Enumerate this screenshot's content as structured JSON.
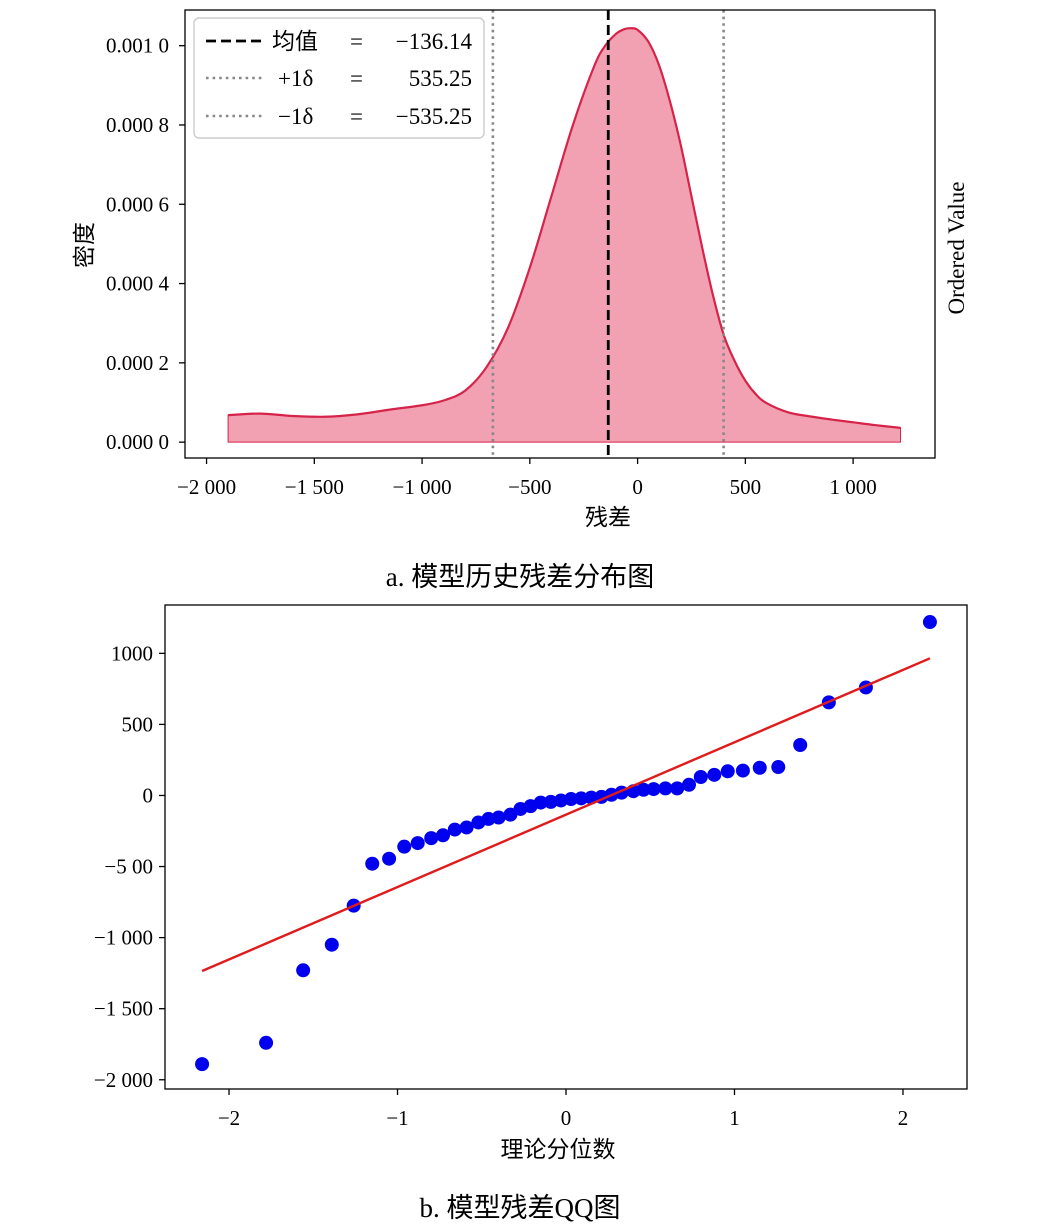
{
  "captions": {
    "a": "a. 模型历史残差分布图",
    "b": "b. 模型残差QQ图"
  },
  "colors": {
    "kde_fill": "#f1a1b2",
    "kde_line": "#d6234a",
    "mean_line": "#000000",
    "sigma_line": "#888888",
    "qq_points": "#0000ee",
    "qq_line": "#e01b1b"
  },
  "chart_data": [
    {
      "type": "area",
      "xlabel": "残差",
      "ylabel": "密度",
      "right_label": "Ordered Value",
      "xlim": [
        -2100,
        1380
      ],
      "ylim": [
        -4e-05,
        0.00109
      ],
      "x_ticks": [
        {
          "value": -2000,
          "label": "−2 000"
        },
        {
          "value": -1500,
          "label": "−1 500"
        },
        {
          "value": -1000,
          "label": "−1 000"
        },
        {
          "value": -500,
          "label": "−500"
        },
        {
          "value": 0,
          "label": "0"
        },
        {
          "value": 500,
          "label": "500"
        },
        {
          "value": 1000,
          "label": "1 000"
        }
      ],
      "y_ticks": [
        {
          "value": 0.0,
          "label": "0.000 0"
        },
        {
          "value": 0.0002,
          "label": "0.000 2"
        },
        {
          "value": 0.0004,
          "label": "0.000 4"
        },
        {
          "value": 0.0006,
          "label": "0.000 6"
        },
        {
          "value": 0.0008,
          "label": "0.000 8"
        },
        {
          "value": 0.001,
          "label": "0.001 0"
        }
      ],
      "curve": {
        "x": [
          -1900,
          -1750,
          -1600,
          -1450,
          -1300,
          -1150,
          -1000,
          -900,
          -800,
          -700,
          -600,
          -500,
          -400,
          -300,
          -200,
          -150,
          -100,
          -60,
          -30,
          0,
          50,
          100,
          150,
          200,
          250,
          300,
          350,
          400,
          450,
          500,
          550,
          600,
          700,
          800,
          900,
          1000,
          1100,
          1220
        ],
        "y": [
          6.8e-05,
          7.2e-05,
          6.6e-05,
          6.4e-05,
          7e-05,
          8.2e-05,
          9.3e-05,
          0.000105,
          0.00013,
          0.00019,
          0.00029,
          0.00044,
          0.00062,
          0.0008,
          0.00095,
          0.001,
          0.00103,
          0.001042,
          0.001044,
          0.00104,
          0.00101,
          0.00095,
          0.00086,
          0.00075,
          0.00062,
          0.00049,
          0.00037,
          0.00027,
          0.000205,
          0.000155,
          0.00012,
          9.8e-05,
          7.5e-05,
          6.5e-05,
          5.7e-05,
          5e-05,
          4.3e-05,
          3.6e-05
        ]
      },
      "mean": -136.14,
      "sigma": 535.25,
      "legend": {
        "placement": "top-left",
        "entries": [
          {
            "name": "均值",
            "eq": "=",
            "value": "−136.14",
            "style": "dashed"
          },
          {
            "name": "+1δ",
            "eq": "=",
            "value": "535.25",
            "style": "dotted"
          },
          {
            "name": "−1δ",
            "eq": "=",
            "value": "−535.25",
            "style": "dotted"
          }
        ]
      }
    },
    {
      "type": "scatter",
      "xlabel": "理论分位数",
      "ylabel": "",
      "xlim": [
        -2.38,
        2.38
      ],
      "ylim": [
        -2065,
        1340
      ],
      "x_ticks": [
        {
          "value": -2,
          "label": "−2"
        },
        {
          "value": -1,
          "label": "−1"
        },
        {
          "value": 0,
          "label": "0"
        },
        {
          "value": 1,
          "label": "1"
        },
        {
          "value": 2,
          "label": "2"
        }
      ],
      "y_ticks": [
        {
          "value": 1000,
          "label": "1000"
        },
        {
          "value": 500,
          "label": "500"
        },
        {
          "value": 0,
          "label": "0"
        },
        {
          "value": -500,
          "label": "−5 00"
        },
        {
          "value": -1000,
          "label": "−1 000"
        },
        {
          "value": -1500,
          "label": "−1 500"
        },
        {
          "value": -2000,
          "label": "−2 000"
        }
      ],
      "points": {
        "x": [
          -2.16,
          -1.78,
          -1.56,
          -1.39,
          -1.26,
          -1.15,
          -1.05,
          -0.96,
          -0.88,
          -0.8,
          -0.73,
          -0.66,
          -0.59,
          -0.52,
          -0.46,
          -0.4,
          -0.33,
          -0.27,
          -0.21,
          -0.15,
          -0.09,
          -0.03,
          0.03,
          0.09,
          0.15,
          0.21,
          0.27,
          0.33,
          0.4,
          0.46,
          0.52,
          0.59,
          0.66,
          0.73,
          0.8,
          0.88,
          0.96,
          1.05,
          1.15,
          1.26,
          1.39,
          1.56,
          1.78,
          2.16
        ],
        "y": [
          -1890,
          -1740,
          -1230,
          -1050,
          -775,
          -480,
          -445,
          -360,
          -335,
          -300,
          -280,
          -240,
          -225,
          -190,
          -165,
          -155,
          -135,
          -95,
          -75,
          -50,
          -45,
          -35,
          -25,
          -20,
          -15,
          -10,
          5,
          20,
          30,
          40,
          45,
          50,
          50,
          75,
          130,
          145,
          170,
          175,
          195,
          200,
          355,
          655,
          760,
          1220
        ]
      },
      "line": {
        "x": [
          -2.16,
          2.16
        ],
        "y": [
          -1235,
          965
        ]
      }
    }
  ]
}
